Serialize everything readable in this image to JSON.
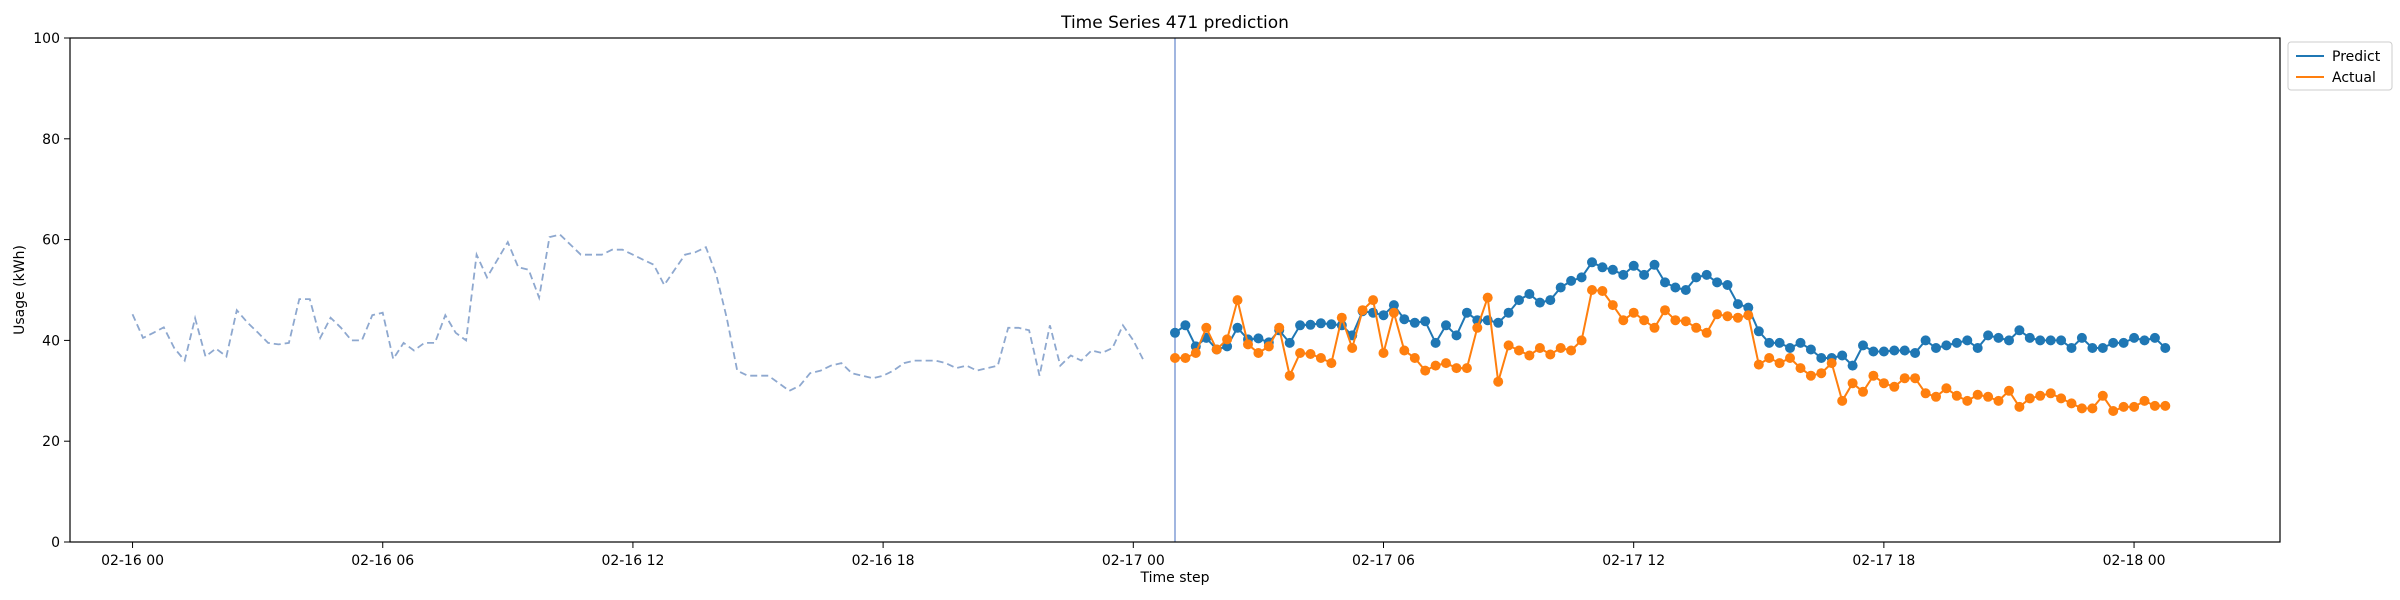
{
  "chart_data": {
    "type": "line",
    "title": "Time Series 471 prediction",
    "xlabel": "Time step",
    "ylabel": "Usage (kWh)",
    "ylim": [
      0,
      100
    ],
    "xlim": [
      "2016-02-15T22:30",
      "2016-02-18T03:30"
    ],
    "yticks": [
      0,
      20,
      40,
      60,
      80,
      100
    ],
    "xticks": [
      {
        "t": "2016-02-16T00:00",
        "label": "02-16 00"
      },
      {
        "t": "2016-02-16T06:00",
        "label": "02-16 06"
      },
      {
        "t": "2016-02-16T12:00",
        "label": "02-16 12"
      },
      {
        "t": "2016-02-16T18:00",
        "label": "02-16 18"
      },
      {
        "t": "2016-02-17T00:00",
        "label": "02-17 00"
      },
      {
        "t": "2016-02-17T06:00",
        "label": "02-17 06"
      },
      {
        "t": "2016-02-17T12:00",
        "label": "02-17 12"
      },
      {
        "t": "2016-02-17T18:00",
        "label": "02-17 18"
      },
      {
        "t": "2016-02-18T00:00",
        "label": "02-18 00"
      }
    ],
    "vline": "2016-02-17T01:00",
    "legend_position": "top-right",
    "grid": false,
    "series": [
      {
        "key": "history",
        "start": "2016-02-16T00:00",
        "interval_minutes": 15,
        "style": "dashed",
        "color": "#8ea8cf",
        "values": [
          45.2,
          40.5,
          41.5,
          42.6,
          38.5,
          36.0,
          44.4,
          36.8,
          38.4,
          36.8,
          46.0,
          43.6,
          41.6,
          39.5,
          39.2,
          39.5,
          48.2,
          48.2,
          40.5,
          44.5,
          42.5,
          40.0,
          40.0,
          45.0,
          45.5,
          36.3,
          39.5,
          38.0,
          39.5,
          39.5,
          45.0,
          41.5,
          40.0,
          57.0,
          52.5,
          56.0,
          59.5,
          54.5,
          54.0,
          48.5,
          60.5,
          61.0,
          59.0,
          57.0,
          57.0,
          57.0,
          58.0,
          58.0,
          57.0,
          56.0,
          55.0,
          51.0,
          54.0,
          57.0,
          57.5,
          58.5,
          53.0,
          44.5,
          34.0,
          33.0,
          33.0,
          33.0,
          31.5,
          30.0,
          31.0,
          33.5,
          34.0,
          35.0,
          35.5,
          33.5,
          33.0,
          32.5,
          33.0,
          34.0,
          35.5,
          36.0,
          36.0,
          36.0,
          35.5,
          34.5,
          35.0,
          34.0,
          34.5,
          35.0,
          42.5,
          42.5,
          42.0,
          33.0,
          43.0,
          35.0,
          37.0,
          36.0,
          38.0,
          37.5,
          38.5,
          43.0,
          40.0,
          36.0
        ]
      },
      {
        "key": "predict",
        "name": "Predict",
        "start": "2016-02-17T01:00",
        "interval_minutes": 15,
        "color": "#1f77b4",
        "values": [
          41.5,
          43.0,
          38.8,
          40.5,
          38.2,
          38.8,
          42.5,
          40.2,
          40.4,
          39.6,
          42.0,
          39.5,
          43.0,
          43.1,
          43.4,
          43.2,
          43.0,
          41.0,
          45.8,
          45.5,
          45.0,
          47.0,
          44.2,
          43.5,
          43.8,
          39.5,
          43.0,
          41.0,
          45.5,
          44.0,
          44.0,
          43.5,
          45.5,
          48.0,
          49.2,
          47.5,
          48.0,
          50.5,
          51.8,
          52.5,
          55.5,
          54.5,
          54.0,
          53.0,
          54.8,
          53.0,
          55.0,
          51.5,
          50.5,
          50.0,
          52.5,
          53.0,
          51.5,
          51.0,
          47.2,
          46.5,
          41.8,
          39.5,
          39.5,
          38.5,
          39.5,
          38.2,
          36.5,
          36.5,
          37.0,
          35.0,
          39.0,
          37.8,
          37.8,
          38.0,
          38.0,
          37.5,
          40.0,
          38.5,
          39.0,
          39.5,
          40.0,
          38.5,
          41.0,
          40.5,
          40.0,
          42.0,
          40.5,
          40.0,
          40.0,
          40.0,
          38.5,
          40.5,
          38.5,
          38.5,
          39.5,
          39.5,
          40.5,
          40.0,
          40.5,
          38.5
        ]
      },
      {
        "key": "actual",
        "name": "Actual",
        "start": "2016-02-17T01:00",
        "interval_minutes": 15,
        "color": "#ff7f0e",
        "values": [
          36.5,
          36.5,
          37.5,
          42.5,
          38.2,
          40.2,
          48.0,
          39.2,
          37.5,
          38.8,
          42.5,
          33.0,
          37.5,
          37.3,
          36.5,
          35.5,
          44.5,
          38.5,
          46.0,
          48.0,
          37.5,
          45.5,
          38.0,
          36.5,
          34.0,
          35.0,
          35.5,
          34.5,
          34.5,
          42.5,
          48.5,
          31.8,
          39.0,
          38.0,
          37.0,
          38.5,
          37.2,
          38.5,
          38.0,
          40.0,
          50.0,
          49.8,
          47.0,
          44.0,
          45.5,
          44.0,
          42.5,
          46.0,
          44.0,
          43.8,
          42.5,
          41.5,
          45.2,
          44.8,
          44.5,
          45.0,
          35.2,
          36.5,
          35.5,
          36.5,
          34.5,
          33.0,
          33.5,
          35.5,
          28.0,
          31.5,
          29.8,
          33.0,
          31.5,
          30.8,
          32.5,
          32.5,
          29.5,
          28.8,
          30.5,
          29.0,
          28.0,
          29.2,
          28.8,
          28.0,
          30.0,
          26.8,
          28.5,
          29.0,
          29.5,
          28.5,
          27.5,
          26.5,
          26.5,
          29.0,
          26.0,
          26.8,
          26.8,
          28.0,
          27.0,
          27.0
        ]
      }
    ]
  }
}
